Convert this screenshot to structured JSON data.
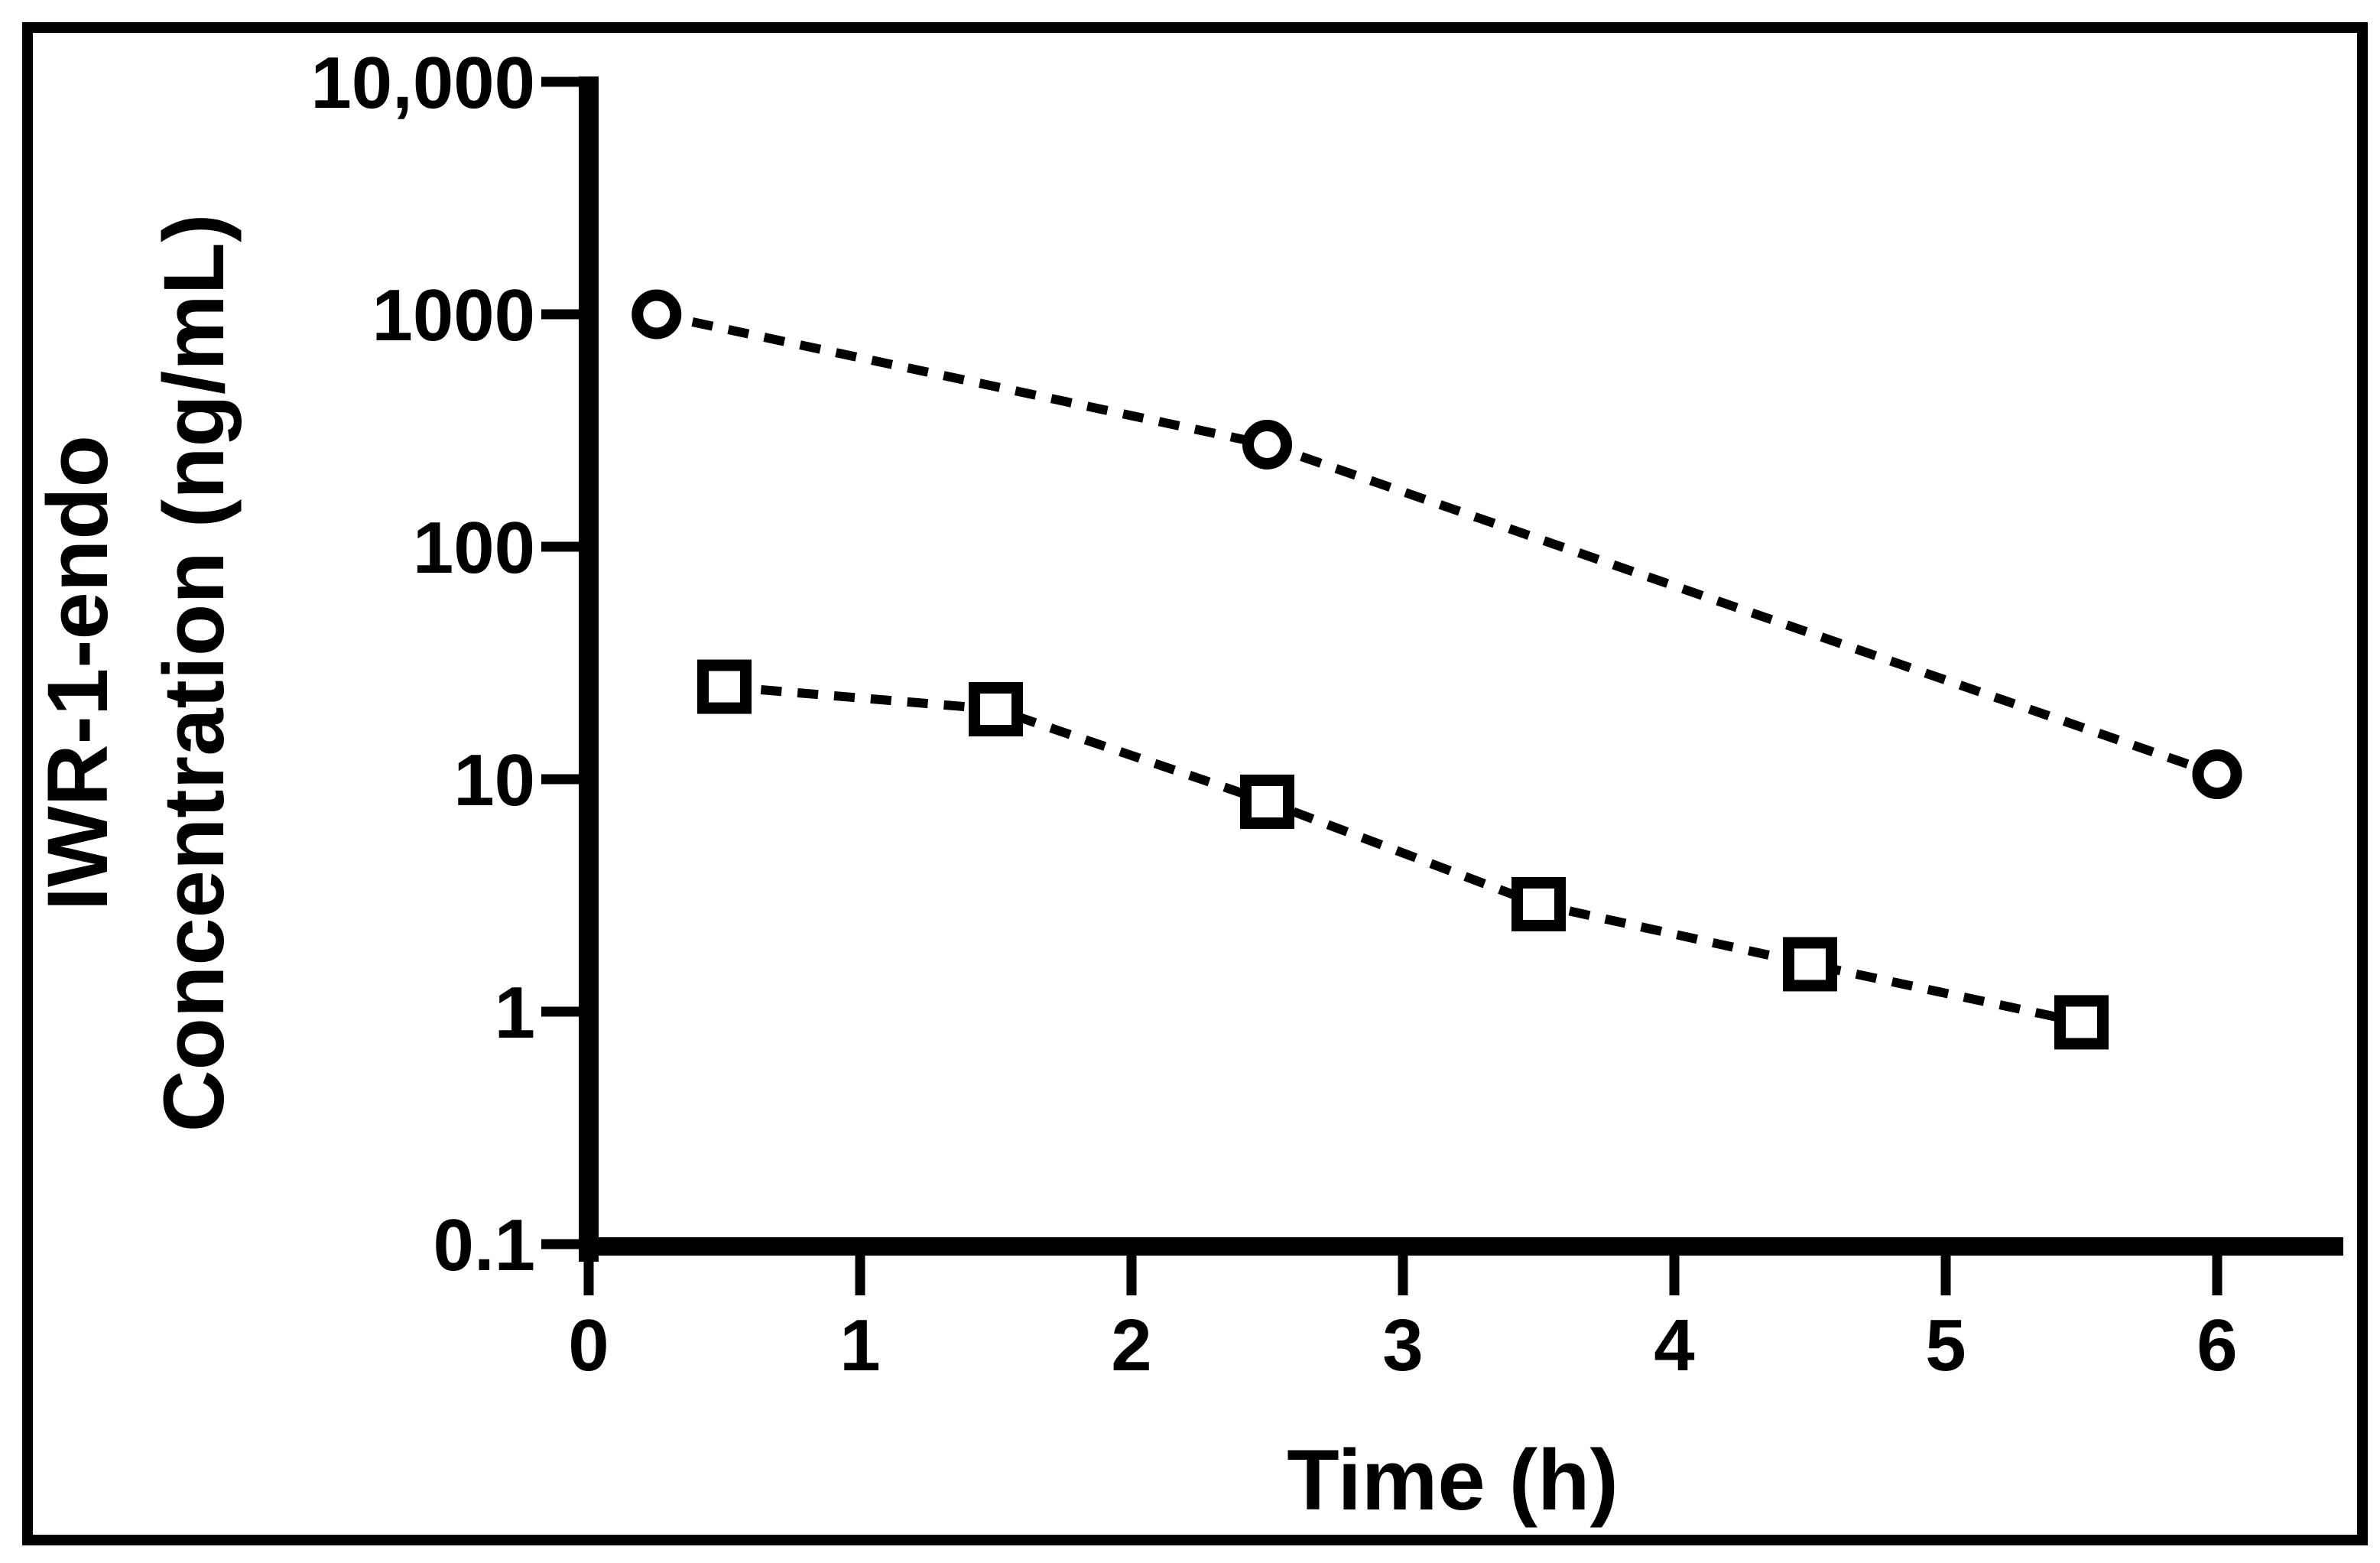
{
  "figure": {
    "description": "Semi-logarithmic pharmacokinetic concentration-time plot with two dashed series (open circles and open squares)",
    "styles": {
      "ink": "#000000",
      "background": "#ffffff"
    }
  },
  "chart_data": {
    "type": "line",
    "subtype": "scatter-dashed-line-semilog",
    "title": "",
    "xlabel": "Time (h)",
    "ylabel_line1": "IWR-1-endo",
    "ylabel_line2": "Concentration (ng/mL)",
    "x_axis": {
      "label": "Time (h)",
      "scale": "linear",
      "range": [
        0,
        6.45
      ],
      "ticks": [
        {
          "value": 0,
          "label": "0"
        },
        {
          "value": 1,
          "label": "1"
        },
        {
          "value": 2,
          "label": "2"
        },
        {
          "value": 3,
          "label": "3"
        },
        {
          "value": 4,
          "label": "4"
        },
        {
          "value": 5,
          "label": "5"
        },
        {
          "value": 6,
          "label": "6"
        }
      ]
    },
    "y_axis": {
      "label_line1": "IWR-1-endo",
      "label_line2": "Concentration (ng/mL)",
      "scale": "log10",
      "range": [
        0.1,
        10000
      ],
      "ticks": [
        {
          "value": 10000,
          "label": "10,000"
        },
        {
          "value": 1000,
          "label": "1000"
        },
        {
          "value": 100,
          "label": "100"
        },
        {
          "value": 10,
          "label": "10"
        },
        {
          "value": 1,
          "label": "1"
        },
        {
          "value": 0.1,
          "label": "0.1"
        }
      ]
    },
    "grid": false,
    "legend": "none",
    "series": [
      {
        "name": "circle-series",
        "marker": "open-circle",
        "line_style": "dashed",
        "points": [
          {
            "time_h": 0.25,
            "conc_ng_ml": 1000
          },
          {
            "time_h": 2.5,
            "conc_ng_ml": 275
          },
          {
            "time_h": 6.0,
            "conc_ng_ml": 10.5
          }
        ]
      },
      {
        "name": "square-series",
        "marker": "open-square",
        "line_style": "dashed",
        "points": [
          {
            "time_h": 0.5,
            "conc_ng_ml": 25
          },
          {
            "time_h": 1.5,
            "conc_ng_ml": 20
          },
          {
            "time_h": 2.5,
            "conc_ng_ml": 8
          },
          {
            "time_h": 3.5,
            "conc_ng_ml": 2.9
          },
          {
            "time_h": 4.5,
            "conc_ng_ml": 1.6
          },
          {
            "time_h": 5.5,
            "conc_ng_ml": 0.9
          }
        ]
      }
    ]
  }
}
